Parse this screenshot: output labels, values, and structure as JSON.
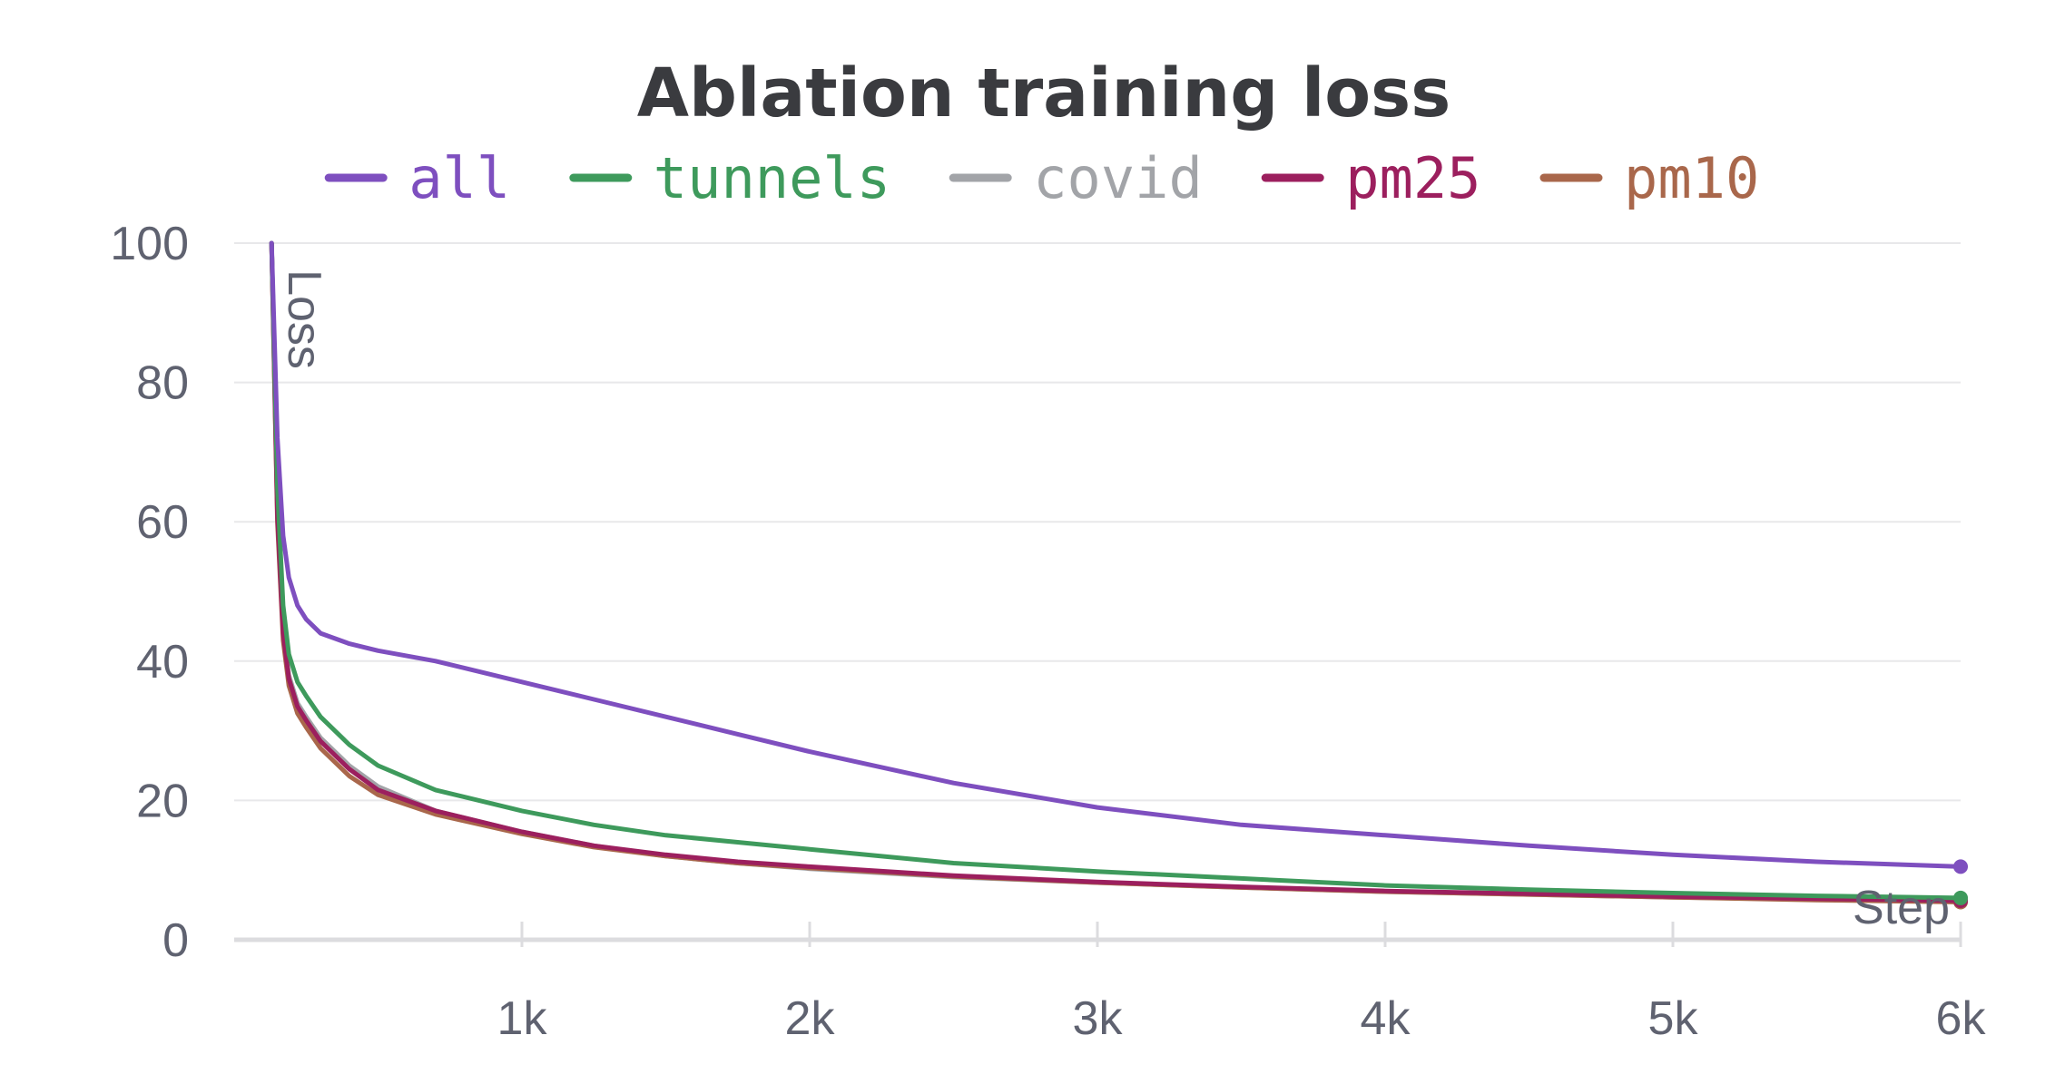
{
  "chart_data": {
    "type": "line",
    "title": "Ablation training loss",
    "xlabel": "Step",
    "ylabel": "Loss",
    "xlim": [
      0,
      6000
    ],
    "ylim": [
      0,
      100
    ],
    "x_ticks": [
      {
        "value": 1000,
        "label": "1k"
      },
      {
        "value": 2000,
        "label": "2k"
      },
      {
        "value": 3000,
        "label": "3k"
      },
      {
        "value": 4000,
        "label": "4k"
      },
      {
        "value": 5000,
        "label": "5k"
      },
      {
        "value": 6000,
        "label": "6k"
      }
    ],
    "y_ticks": [
      {
        "value": 0,
        "label": "0"
      },
      {
        "value": 20,
        "label": "20"
      },
      {
        "value": 40,
        "label": "40"
      },
      {
        "value": 60,
        "label": "60"
      },
      {
        "value": 80,
        "label": "80"
      },
      {
        "value": 100,
        "label": "100"
      }
    ],
    "grid": true,
    "legend_position": "top",
    "series": [
      {
        "name": "all",
        "color": "#7e4fbf",
        "x": [
          130,
          150,
          170,
          190,
          220,
          250,
          300,
          400,
          500,
          700,
          1000,
          1250,
          1500,
          1750,
          2000,
          2500,
          3000,
          3500,
          4000,
          4500,
          5000,
          5500,
          6000
        ],
        "y": [
          100,
          72,
          58,
          52,
          48,
          46,
          44,
          42.5,
          41.5,
          40,
          37,
          34.5,
          32,
          29.5,
          27,
          22.5,
          19,
          16.5,
          15,
          13.5,
          12.2,
          11.2,
          10.5
        ]
      },
      {
        "name": "tunnels",
        "color": "#3e9a5c",
        "x": [
          130,
          150,
          170,
          190,
          220,
          250,
          300,
          400,
          500,
          700,
          1000,
          1250,
          1500,
          1750,
          2000,
          2500,
          3000,
          3500,
          4000,
          4500,
          5000,
          5500,
          6000
        ],
        "y": [
          100,
          65,
          48,
          41,
          37,
          35,
          32,
          28,
          25,
          21.5,
          18.5,
          16.5,
          15,
          14,
          13,
          11,
          9.8,
          8.8,
          7.8,
          7.2,
          6.7,
          6.3,
          6.0
        ]
      },
      {
        "name": "covid",
        "color": "#a2a4a8",
        "x": [
          130,
          150,
          170,
          190,
          220,
          250,
          300,
          400,
          500,
          700,
          1000,
          1250,
          1500,
          1750,
          2000,
          2500,
          3000,
          3500,
          4000,
          4500,
          5000,
          5500,
          6000
        ],
        "y": [
          100,
          62,
          45,
          38,
          34,
          32,
          29,
          25,
          22,
          18.5,
          15.5,
          13.5,
          12,
          11,
          10.2,
          9,
          8.2,
          7.5,
          6.9,
          6.5,
          6.1,
          5.8,
          5.5
        ]
      },
      {
        "name": "pm25",
        "color": "#9c1f5e",
        "x": [
          130,
          150,
          170,
          190,
          220,
          250,
          300,
          400,
          500,
          700,
          1000,
          1250,
          1500,
          1750,
          2000,
          2500,
          3000,
          3500,
          4000,
          4500,
          5000,
          5500,
          6000
        ],
        "y": [
          100,
          61,
          44,
          37.5,
          33.5,
          31.5,
          28.5,
          24.5,
          21.5,
          18.5,
          15.5,
          13.5,
          12.2,
          11.2,
          10.5,
          9.2,
          8.3,
          7.6,
          7.0,
          6.6,
          6.2,
          5.9,
          5.6
        ]
      },
      {
        "name": "pm10",
        "color": "#a9674b",
        "x": [
          130,
          150,
          170,
          190,
          220,
          250,
          300,
          400,
          500,
          700,
          1000,
          1250,
          1500,
          1750,
          2000,
          2500,
          3000,
          3500,
          4000,
          4500,
          5000,
          5500,
          6000
        ],
        "y": [
          100,
          60,
          43,
          36.5,
          32.5,
          30.5,
          27.5,
          23.5,
          20.8,
          18,
          15.2,
          13.3,
          12,
          11,
          10.3,
          9.1,
          8.2,
          7.5,
          6.9,
          6.5,
          6.1,
          5.7,
          5.4
        ]
      }
    ]
  }
}
